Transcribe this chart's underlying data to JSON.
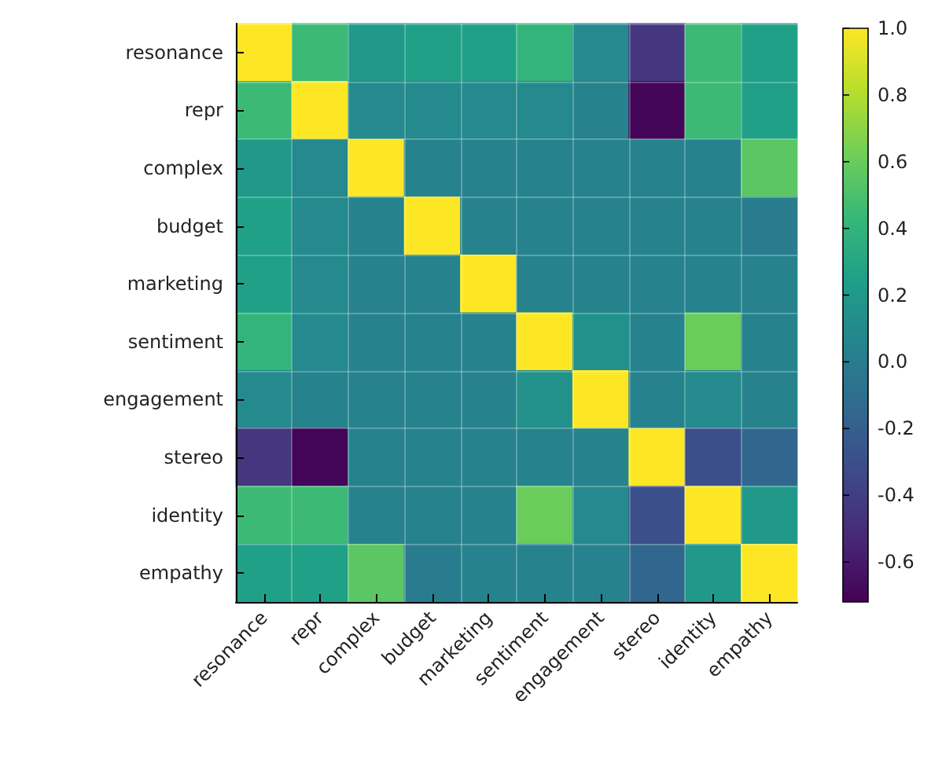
{
  "chart_data": {
    "type": "heatmap",
    "categories": [
      "resonance",
      "repr",
      "complex",
      "budget",
      "marketing",
      "sentiment",
      "engagement",
      "stereo",
      "identity",
      "empathy"
    ],
    "y_categories": [
      "resonance",
      "repr",
      "complex",
      "budget",
      "marketing",
      "sentiment",
      "engagement",
      "stereo",
      "identity",
      "empathy"
    ],
    "cells": [
      [
        1,
        0.45,
        0.2,
        0.25,
        0.25,
        0.4,
        0.1,
        -0.45,
        0.45,
        0.25
      ],
      [
        0.45,
        1,
        0.1,
        0.1,
        0.1,
        0.1,
        0.05,
        -0.7,
        0.45,
        0.25
      ],
      [
        0.2,
        0.1,
        1,
        0.05,
        0.05,
        0.05,
        0.05,
        0.05,
        0.05,
        0.55
      ],
      [
        0.25,
        0.1,
        0.05,
        1,
        0.05,
        0.05,
        0.05,
        0.05,
        0.05,
        0.0
      ],
      [
        0.25,
        0.1,
        0.05,
        0.05,
        1,
        0.05,
        0.05,
        0.05,
        0.05,
        0.05
      ],
      [
        0.4,
        0.1,
        0.05,
        0.05,
        0.05,
        1,
        0.15,
        0.05,
        0.6,
        0.05
      ],
      [
        0.1,
        0.05,
        0.05,
        0.05,
        0.05,
        0.15,
        1,
        0.05,
        0.1,
        0.05
      ],
      [
        -0.45,
        -0.7,
        0.05,
        0.05,
        0.05,
        0.05,
        0.05,
        1,
        -0.3,
        -0.15
      ],
      [
        0.45,
        0.45,
        0.05,
        0.05,
        0.05,
        0.6,
        0.1,
        -0.3,
        1,
        0.2
      ],
      [
        0.25,
        0.25,
        0.55,
        0.0,
        0.05,
        0.05,
        0.05,
        -0.15,
        0.2,
        1
      ]
    ],
    "clim": [
      -0.72,
      1.0
    ],
    "cticks": [
      -0.6,
      -0.4,
      -0.2,
      {
        "value": 0,
        "label": "0.0"
      },
      0.2,
      0.4,
      0.6,
      0.8,
      {
        "value": 1,
        "label": "1.0"
      }
    ],
    "grid": true
  }
}
